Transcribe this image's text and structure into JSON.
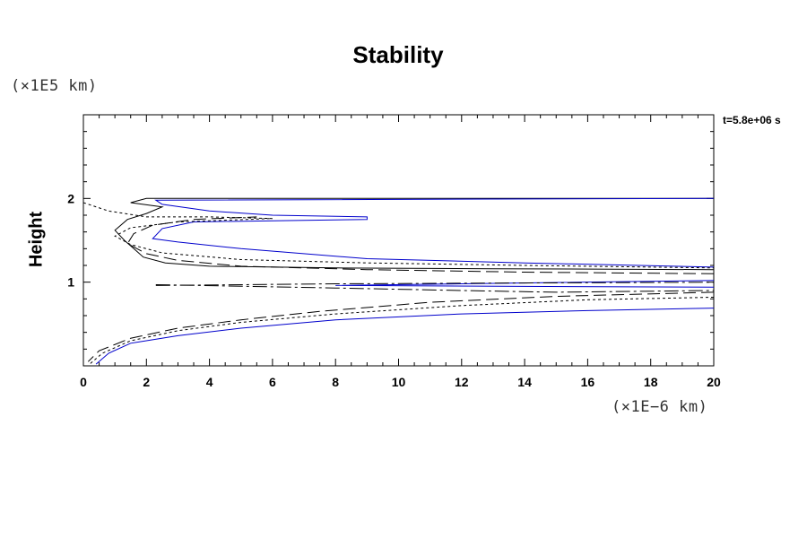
{
  "chart_data": {
    "type": "line",
    "title": "Stability",
    "ylabel": "Height",
    "y_unit": "(×1E5 km)",
    "x_unit": "(×1E−6 km)",
    "annotation": "t=5.8e+06 s",
    "xlim": [
      0,
      20
    ],
    "ylim": [
      0,
      3
    ],
    "x_ticks": [
      "0",
      "2",
      "4",
      "6",
      "8",
      "10",
      "12",
      "14",
      "16",
      "18",
      "20"
    ],
    "y_ticks": [
      "1",
      "2"
    ],
    "grid": false,
    "series": [
      {
        "style": "solid",
        "color": "#000000",
        "points": [
          [
            20,
            2.0
          ],
          [
            2.0,
            2.0
          ],
          [
            1.5,
            1.95
          ],
          [
            2.5,
            1.9
          ],
          [
            2.0,
            1.82
          ],
          [
            1.4,
            1.75
          ],
          [
            1.0,
            1.62
          ],
          [
            1.3,
            1.5
          ],
          [
            1.6,
            1.4
          ],
          [
            1.9,
            1.3
          ],
          [
            2.6,
            1.23
          ],
          [
            4,
            1.19
          ],
          [
            8,
            1.17
          ],
          [
            13,
            1.16
          ],
          [
            20,
            1.15
          ]
        ]
      },
      {
        "style": "solid",
        "color": "#0000cc",
        "points": [
          [
            20,
            2.0
          ],
          [
            2.3,
            1.98
          ],
          [
            2.5,
            1.93
          ],
          [
            4.0,
            1.85
          ],
          [
            6.0,
            1.8
          ],
          [
            9.0,
            1.78
          ],
          [
            9.0,
            1.75
          ],
          [
            3.5,
            1.72
          ],
          [
            2.5,
            1.64
          ],
          [
            2.2,
            1.52
          ],
          [
            3.0,
            1.48
          ],
          [
            5.0,
            1.4
          ],
          [
            9.0,
            1.28
          ],
          [
            14,
            1.23
          ],
          [
            20,
            1.18
          ]
        ]
      },
      {
        "style": "solid",
        "color": "#0000cc",
        "points": [
          [
            20,
            1.02
          ],
          [
            12,
            0.98
          ],
          [
            8,
            0.96
          ],
          [
            20,
            0.94
          ]
        ]
      },
      {
        "style": "solid",
        "color": "#0000cc",
        "points": [
          [
            20,
            0.69
          ],
          [
            16,
            0.66
          ],
          [
            12,
            0.62
          ],
          [
            8,
            0.55
          ],
          [
            5,
            0.45
          ],
          [
            3,
            0.36
          ],
          [
            1.5,
            0.27
          ],
          [
            0.8,
            0.15
          ],
          [
            0.4,
            0.02
          ]
        ]
      },
      {
        "style": "dotted",
        "color": "#000000",
        "points": [
          [
            0.0,
            1.95
          ],
          [
            0.8,
            1.85
          ],
          [
            2.0,
            1.78
          ],
          [
            4.0,
            1.78
          ],
          [
            6.0,
            1.76
          ],
          [
            3.0,
            1.72
          ],
          [
            1.5,
            1.65
          ],
          [
            1.0,
            1.55
          ],
          [
            1.5,
            1.45
          ],
          [
            2.5,
            1.35
          ],
          [
            5,
            1.27
          ],
          [
            9,
            1.23
          ],
          [
            14,
            1.2
          ],
          [
            20,
            1.17
          ]
        ]
      },
      {
        "style": "dotted",
        "color": "#000000",
        "points": [
          [
            20,
            0.82
          ],
          [
            16,
            0.79
          ],
          [
            12,
            0.72
          ],
          [
            8,
            0.62
          ],
          [
            5,
            0.52
          ],
          [
            3,
            0.42
          ],
          [
            1.5,
            0.3
          ],
          [
            0.6,
            0.15
          ],
          [
            0.2,
            0.02
          ]
        ]
      },
      {
        "style": "dashed",
        "color": "#000000",
        "points": [
          [
            20,
            1.1
          ],
          [
            14,
            1.12
          ],
          [
            9,
            1.15
          ],
          [
            5,
            1.19
          ],
          [
            3,
            1.26
          ],
          [
            2,
            1.34
          ],
          [
            1.4,
            1.46
          ],
          [
            1.6,
            1.58
          ],
          [
            2.2,
            1.68
          ],
          [
            3.5,
            1.75
          ],
          [
            5.5,
            1.78
          ]
        ]
      },
      {
        "style": "dashed",
        "color": "#000000",
        "points": [
          [
            20,
            0.88
          ],
          [
            15,
            0.83
          ],
          [
            11,
            0.76
          ],
          [
            7.5,
            0.65
          ],
          [
            5,
            0.55
          ],
          [
            3,
            0.45
          ],
          [
            1.5,
            0.33
          ],
          [
            0.5,
            0.18
          ],
          [
            0.15,
            0.05
          ]
        ]
      },
      {
        "style": "dashdot",
        "color": "#000000",
        "points": [
          [
            2.3,
            0.96
          ],
          [
            8,
            0.98
          ],
          [
            14,
            0.99
          ],
          [
            20,
            1.0
          ]
        ]
      },
      {
        "style": "dashdot",
        "color": "#000000",
        "points": [
          [
            2.3,
            0.97
          ],
          [
            8,
            0.93
          ],
          [
            12,
            0.9
          ],
          [
            15,
            0.88
          ],
          [
            20,
            0.9
          ]
        ]
      }
    ]
  }
}
